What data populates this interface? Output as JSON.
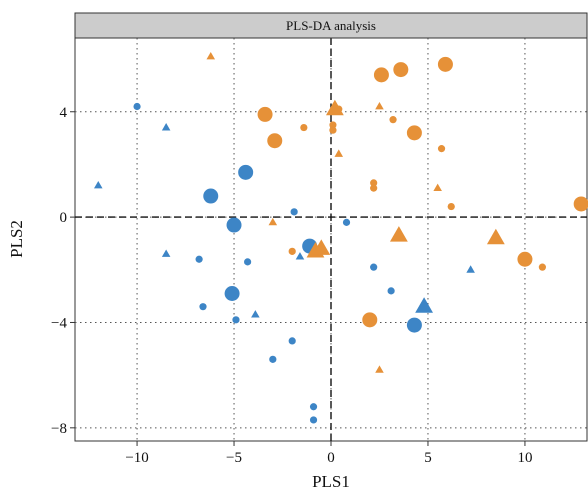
{
  "chart_data": {
    "type": "scatter",
    "title": "PLS-DA analysis",
    "xlabel": "PLS1",
    "ylabel": "PLS2",
    "xlim": [
      -13.2,
      13.2
    ],
    "ylim": [
      -8.5,
      6.8
    ],
    "xticks": [
      -10,
      -5,
      0,
      5,
      10
    ],
    "yticks": [
      -8,
      -4,
      0,
      4
    ],
    "grid": true,
    "grid_style": "dotted",
    "reference_lines": {
      "x": 0,
      "y": 0,
      "style": "dashed"
    },
    "legend": "none",
    "colors": {
      "blue": "#3d85c6",
      "orange": "#e69138",
      "strip_bg": "#cccccc"
    },
    "points": [
      {
        "x": -10.0,
        "y": 4.2,
        "color": "blue",
        "shape": "circle",
        "size": "small"
      },
      {
        "x": -8.5,
        "y": 3.4,
        "color": "blue",
        "shape": "triangle",
        "size": "small"
      },
      {
        "x": -12.0,
        "y": 1.2,
        "color": "blue",
        "shape": "triangle",
        "size": "small"
      },
      {
        "x": -6.2,
        "y": 0.8,
        "color": "blue",
        "shape": "circle",
        "size": "large"
      },
      {
        "x": -4.4,
        "y": 1.7,
        "color": "blue",
        "shape": "circle",
        "size": "large"
      },
      {
        "x": -5.0,
        "y": -0.3,
        "color": "blue",
        "shape": "circle",
        "size": "large"
      },
      {
        "x": -1.9,
        "y": 0.2,
        "color": "blue",
        "shape": "circle",
        "size": "small"
      },
      {
        "x": 0.8,
        "y": -0.2,
        "color": "blue",
        "shape": "circle",
        "size": "small"
      },
      {
        "x": -8.5,
        "y": -1.4,
        "color": "blue",
        "shape": "triangle",
        "size": "small"
      },
      {
        "x": -6.8,
        "y": -1.6,
        "color": "blue",
        "shape": "circle",
        "size": "small"
      },
      {
        "x": -4.3,
        "y": -1.7,
        "color": "blue",
        "shape": "circle",
        "size": "small"
      },
      {
        "x": -1.6,
        "y": -1.5,
        "color": "blue",
        "shape": "triangle",
        "size": "small"
      },
      {
        "x": -1.1,
        "y": -1.1,
        "color": "blue",
        "shape": "circle",
        "size": "large"
      },
      {
        "x": -5.1,
        "y": -2.9,
        "color": "blue",
        "shape": "circle",
        "size": "large"
      },
      {
        "x": -6.6,
        "y": -3.4,
        "color": "blue",
        "shape": "circle",
        "size": "small"
      },
      {
        "x": -4.9,
        "y": -3.9,
        "color": "blue",
        "shape": "circle",
        "size": "small"
      },
      {
        "x": -3.9,
        "y": -3.7,
        "color": "blue",
        "shape": "triangle",
        "size": "small"
      },
      {
        "x": -2.0,
        "y": -4.7,
        "color": "blue",
        "shape": "circle",
        "size": "small"
      },
      {
        "x": -3.0,
        "y": -5.4,
        "color": "blue",
        "shape": "circle",
        "size": "small"
      },
      {
        "x": 2.2,
        "y": -1.9,
        "color": "blue",
        "shape": "circle",
        "size": "small"
      },
      {
        "x": 3.1,
        "y": -2.8,
        "color": "blue",
        "shape": "circle",
        "size": "small"
      },
      {
        "x": 4.8,
        "y": -3.4,
        "color": "blue",
        "shape": "triangle",
        "size": "large"
      },
      {
        "x": 4.3,
        "y": -4.1,
        "color": "blue",
        "shape": "circle",
        "size": "large"
      },
      {
        "x": 7.2,
        "y": -2.0,
        "color": "blue",
        "shape": "triangle",
        "size": "small"
      },
      {
        "x": -0.9,
        "y": -7.2,
        "color": "blue",
        "shape": "circle",
        "size": "small"
      },
      {
        "x": -0.9,
        "y": -7.7,
        "color": "blue",
        "shape": "circle",
        "size": "small"
      },
      {
        "x": -6.2,
        "y": 6.1,
        "color": "orange",
        "shape": "triangle",
        "size": "small"
      },
      {
        "x": -3.4,
        "y": 3.9,
        "color": "orange",
        "shape": "circle",
        "size": "large"
      },
      {
        "x": -2.9,
        "y": 2.9,
        "color": "orange",
        "shape": "circle",
        "size": "large"
      },
      {
        "x": -1.4,
        "y": 3.4,
        "color": "orange",
        "shape": "circle",
        "size": "small"
      },
      {
        "x": -3.0,
        "y": -0.2,
        "color": "orange",
        "shape": "triangle",
        "size": "small"
      },
      {
        "x": -2.0,
        "y": -1.3,
        "color": "orange",
        "shape": "circle",
        "size": "small"
      },
      {
        "x": -0.8,
        "y": -1.3,
        "color": "orange",
        "shape": "triangle",
        "size": "large"
      },
      {
        "x": -0.5,
        "y": -1.2,
        "color": "orange",
        "shape": "triangle",
        "size": "large"
      },
      {
        "x": 0.2,
        "y": 4.1,
        "color": "orange",
        "shape": "triangle",
        "size": "large"
      },
      {
        "x": 0.4,
        "y": 4.1,
        "color": "orange",
        "shape": "circle",
        "size": "small"
      },
      {
        "x": 0.1,
        "y": 3.5,
        "color": "orange",
        "shape": "circle",
        "size": "small"
      },
      {
        "x": 0.1,
        "y": 3.3,
        "color": "orange",
        "shape": "circle",
        "size": "small"
      },
      {
        "x": 0.4,
        "y": 2.4,
        "color": "orange",
        "shape": "triangle",
        "size": "small"
      },
      {
        "x": 2.6,
        "y": 5.4,
        "color": "orange",
        "shape": "circle",
        "size": "large"
      },
      {
        "x": 3.6,
        "y": 5.6,
        "color": "orange",
        "shape": "circle",
        "size": "large"
      },
      {
        "x": 5.9,
        "y": 5.8,
        "color": "orange",
        "shape": "circle",
        "size": "large"
      },
      {
        "x": 2.5,
        "y": 4.2,
        "color": "orange",
        "shape": "triangle",
        "size": "small"
      },
      {
        "x": 3.2,
        "y": 3.7,
        "color": "orange",
        "shape": "circle",
        "size": "small"
      },
      {
        "x": 4.3,
        "y": 3.2,
        "color": "orange",
        "shape": "circle",
        "size": "large"
      },
      {
        "x": 5.7,
        "y": 2.6,
        "color": "orange",
        "shape": "circle",
        "size": "small"
      },
      {
        "x": 2.2,
        "y": 1.3,
        "color": "orange",
        "shape": "circle",
        "size": "small"
      },
      {
        "x": 2.2,
        "y": 1.1,
        "color": "orange",
        "shape": "circle",
        "size": "small"
      },
      {
        "x": 5.5,
        "y": 1.1,
        "color": "orange",
        "shape": "triangle",
        "size": "small"
      },
      {
        "x": 6.2,
        "y": 0.4,
        "color": "orange",
        "shape": "circle",
        "size": "small"
      },
      {
        "x": 12.9,
        "y": 0.5,
        "color": "orange",
        "shape": "circle",
        "size": "large"
      },
      {
        "x": 3.5,
        "y": -0.7,
        "color": "orange",
        "shape": "triangle",
        "size": "large"
      },
      {
        "x": 8.5,
        "y": -0.8,
        "color": "orange",
        "shape": "triangle",
        "size": "large"
      },
      {
        "x": 10.0,
        "y": -1.6,
        "color": "orange",
        "shape": "circle",
        "size": "large"
      },
      {
        "x": 10.9,
        "y": -1.9,
        "color": "orange",
        "shape": "circle",
        "size": "small"
      },
      {
        "x": 2.0,
        "y": -3.9,
        "color": "orange",
        "shape": "circle",
        "size": "large"
      },
      {
        "x": 2.5,
        "y": -5.8,
        "color": "orange",
        "shape": "triangle",
        "size": "small"
      }
    ]
  }
}
